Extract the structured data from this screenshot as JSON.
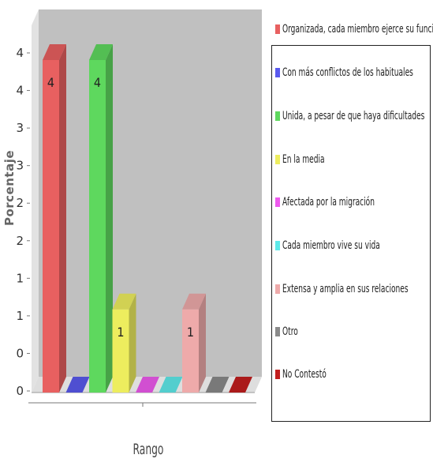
{
  "chart_data": {
    "type": "bar",
    "ylabel": "Porcentaje",
    "xlabel": "Rango",
    "y_tick_labels": [
      "0",
      "0",
      "1",
      "1",
      "2",
      "2",
      "3",
      "3",
      "4",
      "4"
    ],
    "grid": false,
    "legend_position": "right",
    "series": [
      {
        "name": "Organizada, cada miembro ejerce su función",
        "value": 4,
        "label": "4",
        "color": "#e86060"
      },
      {
        "name": "Con más conflictos de los habituales",
        "value": 0,
        "label": "",
        "color": "#5a5aee"
      },
      {
        "name": "Unida, a pesar de que haya dificultades",
        "value": 4,
        "label": "4",
        "color": "#5ed85e"
      },
      {
        "name": "En la media",
        "value": 1,
        "label": "1",
        "color": "#eded5e"
      },
      {
        "name": "Afectada por la migración",
        "value": 0,
        "label": "",
        "color": "#ee5aee"
      },
      {
        "name": "Cada miembro vive su vida",
        "value": 0,
        "label": "",
        "color": "#5eeaea"
      },
      {
        "name": "Extensa y amplia en sus relaciones",
        "value": 1,
        "label": "1",
        "color": "#eeaaaa"
      },
      {
        "name": "Otro",
        "value": 0,
        "label": "",
        "color": "#8a8a8a"
      },
      {
        "name": "No Contestó",
        "value": 0,
        "label": "",
        "color": "#c21f1f"
      }
    ]
  }
}
